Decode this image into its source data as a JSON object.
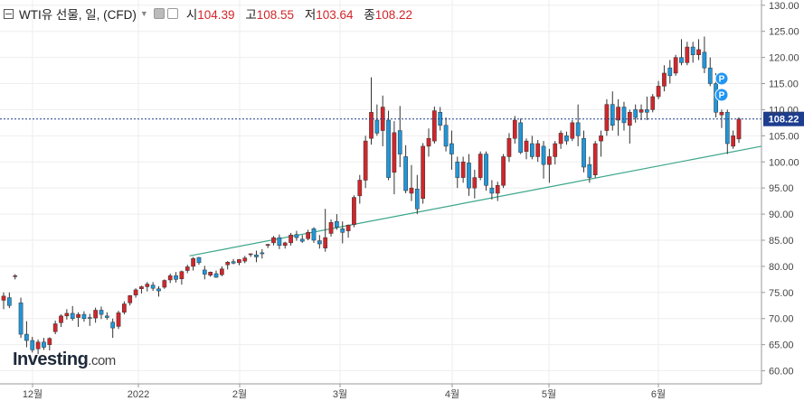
{
  "header": {
    "title": "WTI유 선물, 일, (CFD)",
    "open_label": "시",
    "open": "104.39",
    "high_label": "고",
    "high": "108.55",
    "low_label": "저",
    "low": "103.64",
    "close_label": "종",
    "close": "108.22"
  },
  "logo": {
    "main": "Investing",
    "suffix": ".com"
  },
  "colors": {
    "up": "#d1262b",
    "down": "#2196d9",
    "trendline": "#3aa58a",
    "price_line": "#1d3d8f",
    "pin": "#2196f3"
  },
  "markers": [
    {
      "label": "P",
      "date": "2022-06-17"
    },
    {
      "label": "P",
      "date": "2022-06-20"
    }
  ],
  "chart_data": {
    "type": "candlestick",
    "title": "WTI유 선물, 일, (CFD)",
    "x_axis": {
      "ticks": [
        "12월",
        "2022",
        "2월",
        "3월",
        "4월",
        "5월",
        "6월"
      ],
      "range": [
        "2021-11-25",
        "2022-06-30"
      ]
    },
    "y_axis": {
      "ticks": [
        "60.00",
        "65.00",
        "70.00",
        "75.00",
        "80.00",
        "85.00",
        "90.00",
        "95.00",
        "100.00",
        "105.00",
        "110.00",
        "115.00",
        "120.00",
        "125.00",
        "130.00"
      ],
      "range": [
        57.5,
        131
      ],
      "position": "right"
    },
    "current_price": "108.22",
    "trendline": {
      "start": [
        "2022-01-18",
        82.0
      ],
      "end": [
        "2022-06-30",
        103.0
      ]
    },
    "ohlc": [
      [
        73.5,
        75.0,
        71.8,
        74.3
      ],
      [
        74.0,
        75.0,
        72.0,
        72.5
      ],
      [
        78.2,
        78.5,
        77.5,
        78.2
      ],
      [
        73.0,
        74.0,
        66.3,
        67.0
      ],
      [
        67.0,
        69.5,
        64.5,
        65.8
      ],
      [
        65.8,
        66.5,
        63.5,
        64.0
      ],
      [
        64.2,
        66.0,
        63.2,
        65.5
      ],
      [
        65.5,
        66.3,
        64.0,
        64.5
      ],
      [
        65.0,
        66.4,
        63.9,
        66.2
      ],
      [
        67.5,
        69.6,
        67.0,
        69.0
      ],
      [
        69.2,
        70.8,
        68.4,
        70.5
      ],
      [
        70.5,
        71.8,
        69.8,
        71.0
      ],
      [
        71.0,
        72.4,
        69.6,
        70.0
      ],
      [
        70.2,
        71.2,
        68.4,
        70.8
      ],
      [
        70.8,
        71.4,
        69.4,
        70.0
      ],
      [
        70.2,
        70.9,
        68.6,
        70.1
      ],
      [
        70.1,
        72.1,
        69.2,
        71.6
      ],
      [
        71.6,
        72.3,
        69.9,
        70.8
      ],
      [
        70.5,
        71.2,
        69.8,
        70.2
      ],
      [
        69.3,
        70.0,
        66.3,
        68.2
      ],
      [
        68.5,
        71.5,
        68.0,
        71.1
      ],
      [
        71.2,
        73.3,
        70.8,
        72.8
      ],
      [
        73.0,
        74.5,
        72.5,
        74.4
      ],
      [
        74.5,
        75.8,
        74.0,
        75.5
      ],
      [
        75.7,
        76.3,
        74.8,
        76.1
      ],
      [
        76.1,
        77.0,
        75.2,
        76.6
      ],
      [
        76.4,
        77.0,
        75.3,
        75.8
      ],
      [
        75.7,
        76.2,
        74.2,
        75.3
      ],
      [
        76.0,
        77.5,
        75.7,
        77.3
      ],
      [
        77.4,
        78.6,
        76.8,
        78.2
      ],
      [
        78.2,
        78.9,
        76.9,
        77.5
      ],
      [
        77.6,
        79.2,
        76.5,
        79.0
      ],
      [
        79.2,
        80.3,
        78.7,
        79.9
      ],
      [
        80.0,
        81.8,
        79.2,
        81.5
      ],
      [
        81.7,
        81.8,
        80.3,
        80.7
      ],
      [
        79.3,
        80.1,
        77.5,
        78.5
      ],
      [
        78.3,
        79.0,
        78.0,
        78.9
      ],
      [
        78.6,
        79.2,
        77.8,
        77.9
      ],
      [
        78.4,
        80.0,
        78.1,
        79.5
      ],
      [
        80.3,
        81.0,
        79.4,
        80.8
      ],
      [
        80.9,
        81.4,
        80.4,
        80.6
      ],
      [
        80.7,
        81.4,
        80.2,
        81.3
      ],
      [
        81.0,
        82.0,
        80.6,
        81.6
      ],
      [
        82.3,
        82.5,
        81.8,
        82.4
      ],
      [
        82.2,
        83.0,
        80.8,
        81.8
      ],
      [
        82.6,
        83.3,
        81.5,
        82.4
      ],
      [
        84.0,
        84.3,
        83.5,
        84.2
      ],
      [
        84.5,
        85.8,
        84.0,
        85.5
      ],
      [
        85.5,
        86.1,
        83.3,
        84.0
      ],
      [
        84.0,
        84.7,
        83.4,
        84.5
      ],
      [
        84.5,
        86.4,
        84.0,
        86.0
      ],
      [
        86.1,
        86.8,
        84.9,
        85.5
      ],
      [
        85.2,
        86.0,
        84.5,
        84.8
      ],
      [
        85.3,
        87.0,
        85.0,
        86.5
      ],
      [
        87.2,
        87.5,
        84.5,
        85.0
      ],
      [
        84.9,
        86.0,
        83.4,
        84.3
      ],
      [
        83.5,
        91.0,
        82.8,
        85.5
      ],
      [
        86.3,
        89.0,
        85.7,
        88.4
      ],
      [
        88.6,
        90.0,
        87.0,
        87.5
      ],
      [
        87.2,
        88.6,
        84.4,
        86.5
      ],
      [
        86.8,
        88.0,
        85.5,
        87.9
      ],
      [
        88.0,
        93.6,
        87.5,
        93.2
      ],
      [
        93.5,
        97.5,
        92.0,
        96.5
      ],
      [
        96.5,
        105.0,
        95.0,
        104.0
      ],
      [
        104.5,
        116.2,
        103.3,
        109.5
      ],
      [
        108.0,
        111.0,
        105.0,
        105.5
      ],
      [
        106.0,
        112.7,
        103.0,
        110.5
      ],
      [
        108.0,
        109.8,
        96.5,
        97.0
      ],
      [
        98.0,
        107.8,
        93.8,
        105.6
      ],
      [
        106.0,
        110.7,
        99.0,
        101.5
      ],
      [
        101.0,
        103.2,
        94.0,
        94.5
      ],
      [
        94.0,
        99.4,
        92.5,
        95.0
      ],
      [
        94.8,
        97.5,
        90.0,
        91.0
      ],
      [
        93.0,
        103.6,
        92.0,
        103.0
      ],
      [
        103.0,
        106.4,
        101.0,
        104.5
      ],
      [
        104.0,
        110.6,
        103.5,
        109.8
      ],
      [
        109.5,
        110.5,
        106.0,
        107.0
      ],
      [
        107.0,
        108.5,
        102.0,
        103.0
      ],
      [
        103.5,
        106.0,
        98.5,
        101.5
      ],
      [
        100.0,
        101.0,
        95.0,
        97.0
      ],
      [
        97.0,
        101.0,
        96.0,
        100.0
      ],
      [
        99.8,
        101.5,
        93.5,
        95.0
      ],
      [
        95.0,
        98.5,
        93.0,
        97.0
      ],
      [
        97.0,
        102.0,
        96.5,
        101.5
      ],
      [
        101.5,
        102.0,
        94.5,
        95.5
      ],
      [
        95.0,
        96.5,
        92.8,
        94.0
      ],
      [
        94.0,
        96.2,
        92.5,
        95.5
      ],
      [
        95.5,
        101.5,
        95.0,
        101.0
      ],
      [
        101.0,
        105.5,
        100.0,
        104.5
      ],
      [
        104.5,
        108.8,
        103.5,
        108.0
      ],
      [
        107.5,
        108.3,
        101.5,
        101.8
      ],
      [
        102.0,
        104.5,
        100.5,
        104.0
      ],
      [
        103.5,
        105.0,
        100.5,
        101.0
      ],
      [
        101.0,
        104.2,
        100.0,
        103.5
      ],
      [
        103.0,
        104.0,
        96.8,
        99.5
      ],
      [
        99.5,
        102.5,
        96.0,
        101.0
      ],
      [
        101.0,
        104.0,
        99.5,
        103.5
      ],
      [
        103.5,
        106.0,
        102.5,
        105.5
      ],
      [
        105.0,
        105.8,
        103.3,
        104.0
      ],
      [
        104.5,
        108.0,
        104.0,
        107.5
      ],
      [
        107.5,
        111.0,
        103.0,
        105.0
      ],
      [
        104.5,
        106.0,
        98.0,
        99.0
      ],
      [
        99.5,
        101.0,
        96.0,
        97.0
      ],
      [
        97.5,
        104.0,
        97.0,
        103.5
      ],
      [
        104.0,
        106.0,
        101.0,
        105.0
      ],
      [
        106.0,
        112.0,
        105.0,
        111.0
      ],
      [
        111.0,
        113.5,
        106.0,
        107.0
      ],
      [
        108.0,
        112.0,
        105.0,
        110.5
      ],
      [
        110.5,
        111.5,
        106.0,
        107.5
      ],
      [
        107.0,
        110.0,
        103.5,
        109.5
      ],
      [
        110.0,
        111.0,
        107.5,
        108.5
      ],
      [
        109.5,
        111.0,
        108.0,
        110.0
      ],
      [
        110.0,
        112.5,
        108.0,
        109.5
      ],
      [
        110.0,
        113.0,
        109.5,
        112.5
      ],
      [
        112.5,
        115.5,
        112.0,
        114.5
      ],
      [
        114.5,
        118.5,
        113.5,
        117.0
      ],
      [
        118.0,
        119.5,
        115.0,
        116.5
      ],
      [
        117.0,
        120.5,
        116.5,
        120.0
      ],
      [
        120.0,
        123.5,
        118.5,
        119.0
      ],
      [
        119.0,
        123.0,
        118.5,
        122.0
      ],
      [
        122.0,
        123.0,
        119.0,
        120.5
      ],
      [
        120.5,
        123.5,
        119.5,
        121.5
      ],
      [
        121.0,
        124.0,
        117.0,
        118.0
      ],
      [
        118.0,
        120.0,
        114.5,
        115.0
      ],
      [
        115.0,
        117.0,
        108.5,
        109.5
      ],
      [
        109.0,
        110.0,
        106.5,
        109.5
      ],
      [
        109.5,
        110.0,
        101.5,
        103.5
      ],
      [
        103.0,
        106.0,
        102.5,
        105.0
      ],
      [
        104.39,
        108.55,
        103.64,
        108.22
      ]
    ]
  }
}
